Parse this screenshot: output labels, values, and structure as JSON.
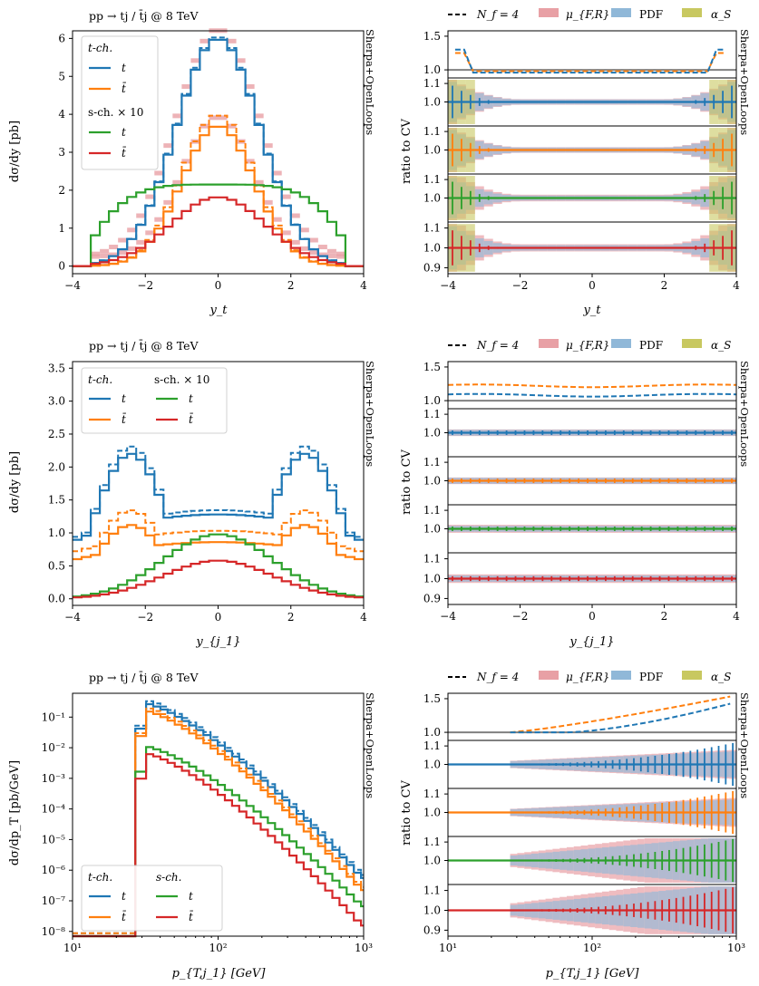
{
  "colors": {
    "t_channel_top": "#1f77b4",
    "t_channel_antitop": "#ff7f0e",
    "s_channel_top": "#2ca02c",
    "s_channel_antitop": "#d62728",
    "band_muFR": "#e8a0a5",
    "band_PDF": "#90b8d8",
    "band_alphaS": "#c8c860",
    "reference": "#808080"
  },
  "ratio_legend": {
    "nf": "N_f = 4",
    "muFR": "μ_{F,R}",
    "pdf": "PDF",
    "alphas": "α_S"
  },
  "side_label": "Sherpa+OpenLoops",
  "ratio_ylabel": "ratio to CV",
  "chart_data": [
    {
      "type": "line",
      "title": "pp → tj / t̄j @ 8 TeV",
      "xlabel": "y_t",
      "ylabel": "dσ/dy [pb]",
      "xlim": [
        -4,
        4
      ],
      "ylim": [
        -0.2,
        6.2
      ],
      "xticks": [
        -4,
        -2,
        0,
        2,
        4
      ],
      "yticks": [
        0,
        1,
        2,
        3,
        4,
        5,
        6
      ],
      "legend": {
        "placement": "top-left",
        "t_header": "t-ch.",
        "s_header": "s-ch. × 10",
        "top": "t",
        "antitop": "t̄"
      },
      "series": [
        {
          "name": "t",
          "channel": "t-ch.",
          "peak": 6.0,
          "width": 1.15,
          "edge": 3.6
        },
        {
          "name": "t̄",
          "channel": "t-ch.",
          "peak": 3.7,
          "width": 1.0,
          "edge": 3.4,
          "dashed_scale": 1.08
        },
        {
          "name": "t",
          "channel": "s-ch. × 10",
          "shape": "plateau",
          "peak": 2.15,
          "edge": 3.6
        },
        {
          "name": "t̄",
          "channel": "s-ch. × 10",
          "peak": 1.82,
          "width": 1.3,
          "edge": 3.5
        }
      ]
    },
    {
      "type": "line",
      "title": "pp → tj / t̄j @ 8 TeV",
      "xlabel": "y_{j_1}",
      "ylabel": "dσ/dy [pb]",
      "xlim": [
        -4,
        4
      ],
      "ylim": [
        -0.1,
        3.6
      ],
      "xticks": [
        -4,
        -2,
        0,
        2,
        4
      ],
      "yticks": [
        0.0,
        0.5,
        1.0,
        1.5,
        2.0,
        2.5,
        3.0,
        3.5
      ],
      "legend": {
        "placement": "top-left",
        "t_header": "t-ch.",
        "s_header": "s-ch. × 10",
        "top": "t",
        "antitop": "t̄"
      },
      "series": [
        {
          "name": "t",
          "channel": "t-ch.",
          "shape": "double",
          "peak": 2.2,
          "center": 1.28,
          "dashed_scale": 1.05
        },
        {
          "name": "t̄",
          "channel": "t-ch.",
          "shape": "double",
          "peak": 1.12,
          "center": 0.86,
          "dashed_scale": 1.2
        },
        {
          "name": "t",
          "channel": "s-ch. × 10",
          "peak": 0.98,
          "width": 1.5
        },
        {
          "name": "t̄",
          "channel": "s-ch. × 10",
          "peak": 0.58,
          "width": 1.5
        }
      ]
    },
    {
      "type": "line",
      "title": "pp → tj / t̄j @ 8 TeV",
      "xlabel": "p_{T,j_1} [GeV]",
      "ylabel": "dσ/dp_T [pb/GeV]",
      "xscale": "log",
      "yscale": "log",
      "xlim": [
        10,
        1000
      ],
      "ylim": [
        7e-09,
        0.6
      ],
      "xticks": [
        10,
        100,
        1000
      ],
      "xtick_labels": [
        "10¹",
        "10²",
        "10³"
      ],
      "yticks": [
        1e-08,
        1e-07,
        1e-06,
        1e-05,
        0.0001,
        0.001,
        0.01,
        0.1
      ],
      "ytick_labels": [
        "10⁻⁸",
        "10⁻⁷",
        "10⁻⁶",
        "10⁻⁵",
        "10⁻⁴",
        "10⁻³",
        "10⁻²",
        "10⁻¹"
      ],
      "legend": {
        "placement": "bottom-left",
        "t_header": "t-ch.",
        "s_header": "s-ch.",
        "top": "t",
        "antitop": "t̄"
      },
      "series": [
        {
          "name": "t",
          "channel": "t-ch.",
          "peak": 0.28,
          "end": 5e-07
        },
        {
          "name": "t̄",
          "channel": "t-ch.",
          "peak": 0.16,
          "end": 2e-07
        },
        {
          "name": "t",
          "channel": "s-ch.",
          "peak": 0.011,
          "end": 6e-08
        },
        {
          "name": "t̄",
          "channel": "s-ch.",
          "peak": 0.0065,
          "end": 1.4e-08
        }
      ]
    },
    {
      "type": "line",
      "title": "",
      "xlabel": "y_t",
      "ylabel": "ratio to CV",
      "xlim": [
        -4,
        4
      ],
      "xticks": [
        -4,
        -2,
        0,
        2,
        4
      ],
      "ratio_top": {
        "ylim": [
          0.88,
          1.58
        ],
        "yticks": [
          1.0,
          1.5
        ],
        "labels": [
          "1.0",
          "1.5"
        ]
      },
      "ratio_bands": {
        "ylim": [
          0.87,
          1.13
        ],
        "yticks": [
          1.0,
          1.1
        ],
        "labels": [
          "1.0",
          "1.1"
        ],
        "last_labels": [
          "0.9",
          "1.0",
          "1.1"
        ]
      }
    },
    {
      "type": "line",
      "title": "",
      "xlabel": "y_{j_1}",
      "ylabel": "ratio to CV",
      "xlim": [
        -4,
        4
      ],
      "xticks": [
        -4,
        -2,
        0,
        2,
        4
      ],
      "ratio_top": {
        "ylim": [
          0.88,
          1.58
        ],
        "yticks": [
          1.0,
          1.5
        ],
        "labels": [
          "1.0",
          "1.5"
        ]
      },
      "ratio_bands": {
        "ylim": [
          0.87,
          1.13
        ],
        "yticks": [
          1.0,
          1.1
        ],
        "labels": [
          "1.0",
          "1.1"
        ],
        "last_labels": [
          "0.9",
          "1.0",
          "1.1"
        ]
      }
    },
    {
      "type": "line",
      "title": "",
      "xlabel": "p_{T,j_1} [GeV]",
      "ylabel": "ratio to CV",
      "xscale": "log",
      "xlim": [
        10,
        1000
      ],
      "xticks": [
        10,
        100,
        1000
      ],
      "xtick_labels": [
        "10¹",
        "10²",
        "10³"
      ],
      "ratio_top": {
        "ylim": [
          0.88,
          1.58
        ],
        "yticks": [
          1.0,
          1.5
        ],
        "labels": [
          "1.0",
          "1.5"
        ]
      },
      "ratio_bands": {
        "ylim": [
          0.87,
          1.13
        ],
        "yticks": [
          1.0,
          1.1
        ],
        "labels": [
          "1.0",
          "1.1"
        ],
        "last_labels": [
          "0.9",
          "1.0",
          "1.1"
        ]
      }
    }
  ]
}
